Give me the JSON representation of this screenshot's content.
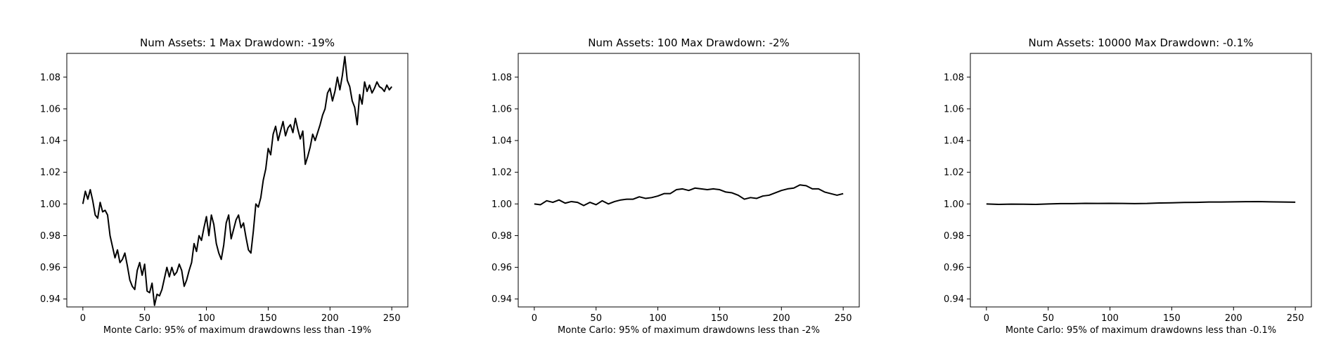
{
  "chart_data": [
    {
      "type": "line",
      "title": "Num Assets: 1 Max Drawdown: -19%",
      "xlabel": "Monte Carlo: 95% of maximum drawdowns less than -19%",
      "ylabel": "",
      "xlim": [
        -13,
        263
      ],
      "ylim": [
        0.935,
        1.095
      ],
      "xticks": [
        0,
        50,
        100,
        150,
        200,
        250
      ],
      "yticks": [
        0.94,
        0.96,
        0.98,
        1.0,
        1.02,
        1.04,
        1.06,
        1.08
      ],
      "series": [
        {
          "x": [
            0,
            2,
            4,
            6,
            8,
            10,
            12,
            14,
            16,
            18,
            20,
            22,
            24,
            26,
            28,
            30,
            32,
            34,
            36,
            38,
            40,
            42,
            44,
            46,
            48,
            50,
            52,
            54,
            56,
            58,
            60,
            62,
            64,
            66,
            68,
            70,
            72,
            74,
            76,
            78,
            80,
            82,
            84,
            86,
            88,
            90,
            92,
            94,
            96,
            98,
            100,
            102,
            104,
            106,
            108,
            110,
            112,
            114,
            116,
            118,
            120,
            122,
            124,
            126,
            128,
            130,
            132,
            134,
            136,
            138,
            140,
            142,
            144,
            146,
            148,
            150,
            152,
            154,
            156,
            158,
            160,
            162,
            164,
            166,
            168,
            170,
            172,
            174,
            176,
            178,
            180,
            182,
            184,
            186,
            188,
            190,
            192,
            194,
            196,
            198,
            200,
            202,
            204,
            206,
            208,
            210,
            212,
            214,
            216,
            218,
            220,
            222,
            224,
            226,
            228,
            230,
            232,
            234,
            236,
            238,
            240,
            242,
            244,
            246,
            248,
            250
          ],
          "values": [
            1.0,
            1.008,
            1.003,
            1.009,
            1.002,
            0.993,
            0.991,
            1.001,
            0.995,
            0.996,
            0.993,
            0.98,
            0.973,
            0.966,
            0.971,
            0.963,
            0.965,
            0.969,
            0.961,
            0.952,
            0.948,
            0.946,
            0.958,
            0.963,
            0.955,
            0.962,
            0.945,
            0.944,
            0.95,
            0.936,
            0.943,
            0.942,
            0.946,
            0.953,
            0.96,
            0.954,
            0.96,
            0.955,
            0.957,
            0.962,
            0.958,
            0.948,
            0.952,
            0.958,
            0.963,
            0.975,
            0.97,
            0.98,
            0.977,
            0.985,
            0.992,
            0.98,
            0.993,
            0.987,
            0.975,
            0.969,
            0.965,
            0.974,
            0.988,
            0.993,
            0.978,
            0.984,
            0.99,
            0.993,
            0.985,
            0.988,
            0.979,
            0.971,
            0.969,
            0.983,
            1.0,
            0.998,
            1.004,
            1.015,
            1.022,
            1.035,
            1.031,
            1.044,
            1.049,
            1.04,
            1.046,
            1.052,
            1.043,
            1.048,
            1.05,
            1.045,
            1.054,
            1.047,
            1.041,
            1.046,
            1.025,
            1.03,
            1.036,
            1.044,
            1.04,
            1.045,
            1.05,
            1.056,
            1.06,
            1.07,
            1.073,
            1.065,
            1.071,
            1.08,
            1.072,
            1.081,
            1.093,
            1.078,
            1.074,
            1.065,
            1.061,
            1.05,
            1.069,
            1.063,
            1.077,
            1.071,
            1.075,
            1.07,
            1.073,
            1.077,
            1.074,
            1.073,
            1.071,
            1.075,
            1.072,
            1.074
          ]
        }
      ]
    },
    {
      "type": "line",
      "title": "Num Assets: 100 Max Drawdown: -2%",
      "xlabel": "Monte Carlo: 95% of maximum drawdowns less than -2%",
      "ylabel": "",
      "xlim": [
        -13,
        263
      ],
      "ylim": [
        0.935,
        1.095
      ],
      "xticks": [
        0,
        50,
        100,
        150,
        200,
        250
      ],
      "yticks": [
        0.94,
        0.96,
        0.98,
        1.0,
        1.02,
        1.04,
        1.06,
        1.08
      ],
      "series": [
        {
          "x": [
            0,
            5,
            10,
            15,
            20,
            25,
            30,
            35,
            40,
            45,
            50,
            55,
            60,
            65,
            70,
            75,
            80,
            85,
            90,
            95,
            100,
            105,
            110,
            115,
            120,
            125,
            130,
            135,
            140,
            145,
            150,
            155,
            160,
            165,
            170,
            175,
            180,
            185,
            190,
            195,
            200,
            205,
            210,
            215,
            220,
            225,
            230,
            235,
            240,
            245,
            250
          ],
          "values": [
            1.0,
            0.9995,
            1.002,
            1.001,
            1.0025,
            1.0005,
            1.0015,
            1.001,
            0.999,
            1.001,
            0.9995,
            1.002,
            1.0,
            1.0015,
            1.0025,
            1.003,
            1.003,
            1.0045,
            1.0035,
            1.004,
            1.005,
            1.0065,
            1.0065,
            1.009,
            1.0095,
            1.0085,
            1.01,
            1.0095,
            1.009,
            1.0095,
            1.009,
            1.0075,
            1.007,
            1.0055,
            1.003,
            1.004,
            1.0035,
            1.005,
            1.0055,
            1.007,
            1.0085,
            1.0095,
            1.01,
            1.012,
            1.0115,
            1.0095,
            1.0095,
            1.0075,
            1.0065,
            1.0055,
            1.0065
          ]
        }
      ]
    },
    {
      "type": "line",
      "title": "Num Assets: 10000 Max Drawdown: -0.1%",
      "xlabel": "Monte Carlo: 95% of maximum drawdowns less than -0.1%",
      "ylabel": "",
      "xlim": [
        -13,
        263
      ],
      "ylim": [
        0.935,
        1.095
      ],
      "xticks": [
        0,
        50,
        100,
        150,
        200,
        250
      ],
      "yticks": [
        0.94,
        0.96,
        0.98,
        1.0,
        1.02,
        1.04,
        1.06,
        1.08
      ],
      "series": [
        {
          "x": [
            0,
            10,
            20,
            30,
            40,
            50,
            60,
            70,
            80,
            90,
            100,
            110,
            120,
            130,
            140,
            150,
            160,
            170,
            180,
            190,
            200,
            210,
            220,
            230,
            240,
            250
          ],
          "values": [
            1.0,
            0.9997,
            0.9999,
            0.9998,
            0.9997,
            1.0,
            1.0002,
            1.0002,
            1.0004,
            1.0003,
            1.0004,
            1.0003,
            1.0002,
            1.0003,
            1.0006,
            1.0007,
            1.0009,
            1.001,
            1.0012,
            1.0012,
            1.0013,
            1.0014,
            1.0015,
            1.0013,
            1.0012,
            1.0011
          ]
        }
      ]
    }
  ]
}
